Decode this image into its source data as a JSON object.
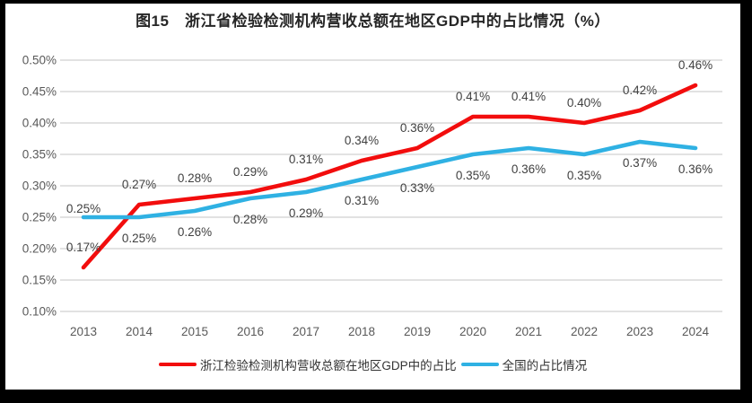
{
  "chart_data": {
    "type": "line",
    "title": "图15　浙江省检验检测机构营收总额在地区GDP中的占比情况（%）",
    "categories": [
      "2013",
      "2014",
      "2015",
      "2016",
      "2017",
      "2018",
      "2019",
      "2020",
      "2021",
      "2022",
      "2023",
      "2024"
    ],
    "ylim": [
      0.1,
      0.5
    ],
    "ytick_step": 0.05,
    "ytick_labels": [
      "0.50%",
      "0.45%",
      "0.40%",
      "0.35%",
      "0.30%",
      "0.25%",
      "0.20%",
      "0.15%",
      "0.10%"
    ],
    "grid": true,
    "legend_position": "bottom",
    "colors": {
      "grid": "#d9d9d9",
      "axis_text": "#595959",
      "data_label_text": "#404040"
    },
    "series": [
      {
        "name": "浙江检验检测机构营收总额在地区GDP中的占比",
        "color": "#f20d0d",
        "values": [
          0.17,
          0.27,
          0.28,
          0.29,
          0.31,
          0.34,
          0.36,
          0.41,
          0.41,
          0.4,
          0.42,
          0.46
        ],
        "labels": [
          "0.17%",
          "0.27%",
          "0.28%",
          "0.29%",
          "0.31%",
          "0.34%",
          "0.36%",
          "0.41%",
          "0.41%",
          "0.40%",
          "0.42%",
          "0.46%"
        ],
        "label_side": "above"
      },
      {
        "name": "全国的占比情况",
        "color": "#2fb1e3",
        "values": [
          0.25,
          0.25,
          0.26,
          0.28,
          0.29,
          0.31,
          0.33,
          0.35,
          0.36,
          0.35,
          0.37,
          0.36
        ],
        "labels": [
          "0.25%",
          "0.25%",
          "0.26%",
          "0.28%",
          "0.29%",
          "0.31%",
          "0.33%",
          "0.35%",
          "0.36%",
          "0.35%",
          "0.37%",
          "0.36%"
        ],
        "label_side": "below",
        "first_label_side": "above"
      }
    ]
  }
}
